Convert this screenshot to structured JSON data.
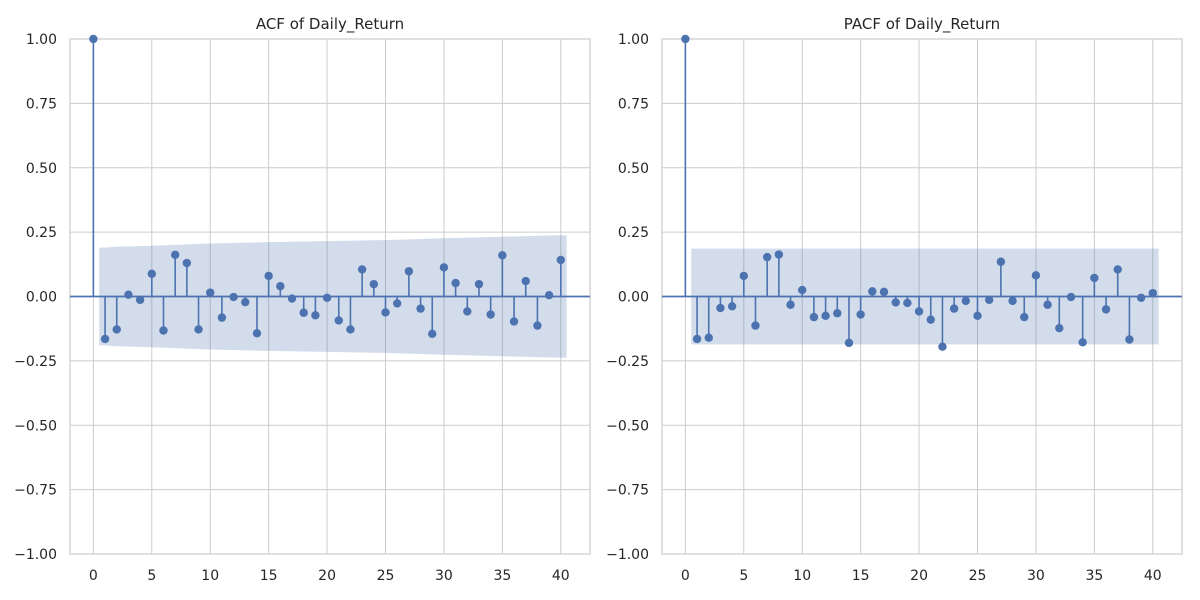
{
  "chart_data": [
    {
      "type": "stem",
      "title": "ACF of Daily_Return",
      "xlabel": "",
      "ylabel": "",
      "xlim": [
        -2,
        42.5
      ],
      "ylim": [
        -1.0,
        1.0
      ],
      "xticks": [
        0,
        5,
        10,
        15,
        20,
        25,
        30,
        35,
        40
      ],
      "yticks": [
        -1.0,
        -0.75,
        -0.5,
        -0.25,
        0.0,
        0.25,
        0.5,
        0.75,
        1.0
      ],
      "xtick_labels": [
        "0",
        "5",
        "10",
        "15",
        "20",
        "25",
        "30",
        "35",
        "40"
      ],
      "ytick_labels": [
        "−1.00",
        "−0.75",
        "−0.50",
        "−0.25",
        "0.00",
        "0.25",
        "0.50",
        "0.75",
        "1.00"
      ],
      "grid": true,
      "color": "#4c72b0",
      "lags": [
        0,
        1,
        2,
        3,
        4,
        5,
        6,
        7,
        8,
        9,
        10,
        11,
        12,
        13,
        14,
        15,
        16,
        17,
        18,
        19,
        20,
        21,
        22,
        23,
        24,
        25,
        26,
        27,
        28,
        29,
        30,
        31,
        32,
        33,
        34,
        35,
        36,
        37,
        38,
        39,
        40
      ],
      "values": [
        1.0,
        -0.165,
        -0.128,
        0.007,
        -0.013,
        0.088,
        -0.132,
        0.162,
        0.13,
        -0.128,
        0.015,
        -0.082,
        -0.002,
        -0.022,
        -0.143,
        0.08,
        0.04,
        -0.008,
        -0.063,
        -0.073,
        -0.005,
        -0.093,
        -0.128,
        0.105,
        0.048,
        -0.062,
        -0.027,
        0.098,
        -0.047,
        -0.145,
        0.113,
        0.052,
        -0.058,
        0.048,
        -0.07,
        0.16,
        -0.097,
        0.06,
        -0.113,
        0.005,
        0.142
      ],
      "confidence_band": {
        "lags": [
          0.5,
          1,
          2,
          5,
          10,
          15,
          20,
          25,
          30,
          35,
          40,
          40.5
        ],
        "upper": [
          0.19,
          0.19,
          0.193,
          0.197,
          0.206,
          0.211,
          0.215,
          0.219,
          0.226,
          0.232,
          0.238,
          0.238
        ],
        "lower": [
          -0.19,
          -0.19,
          -0.193,
          -0.197,
          -0.206,
          -0.211,
          -0.215,
          -0.219,
          -0.226,
          -0.232,
          -0.238,
          -0.238
        ]
      }
    },
    {
      "type": "stem",
      "title": "PACF of Daily_Return",
      "xlabel": "",
      "ylabel": "",
      "xlim": [
        -2,
        42.5
      ],
      "ylim": [
        -1.0,
        1.0
      ],
      "xticks": [
        0,
        5,
        10,
        15,
        20,
        25,
        30,
        35,
        40
      ],
      "yticks": [
        -1.0,
        -0.75,
        -0.5,
        -0.25,
        0.0,
        0.25,
        0.5,
        0.75,
        1.0
      ],
      "xtick_labels": [
        "0",
        "5",
        "10",
        "15",
        "20",
        "25",
        "30",
        "35",
        "40"
      ],
      "ytick_labels": [
        "−1.00",
        "−0.75",
        "−0.50",
        "−0.25",
        "0.00",
        "0.25",
        "0.50",
        "0.75",
        "1.00"
      ],
      "grid": true,
      "color": "#4c72b0",
      "lags": [
        0,
        1,
        2,
        3,
        4,
        5,
        6,
        7,
        8,
        9,
        10,
        11,
        12,
        13,
        14,
        15,
        16,
        17,
        18,
        19,
        20,
        21,
        22,
        23,
        24,
        25,
        26,
        27,
        28,
        29,
        30,
        31,
        32,
        33,
        34,
        35,
        36,
        37,
        38,
        39,
        40
      ],
      "values": [
        1.0,
        -0.165,
        -0.16,
        -0.045,
        -0.038,
        0.08,
        -0.113,
        0.153,
        0.163,
        -0.032,
        0.025,
        -0.08,
        -0.075,
        -0.065,
        -0.18,
        -0.07,
        0.02,
        0.018,
        -0.023,
        -0.025,
        -0.058,
        -0.09,
        -0.195,
        -0.047,
        -0.017,
        -0.075,
        -0.013,
        0.135,
        -0.017,
        -0.08,
        0.082,
        -0.032,
        -0.123,
        -0.002,
        -0.178,
        0.072,
        -0.05,
        0.105,
        -0.167,
        -0.005,
        0.013
      ],
      "confidence_band": {
        "lags": [
          0.5,
          40.5
        ],
        "upper": [
          0.186,
          0.186
        ],
        "lower": [
          -0.186,
          -0.186
        ]
      }
    }
  ]
}
